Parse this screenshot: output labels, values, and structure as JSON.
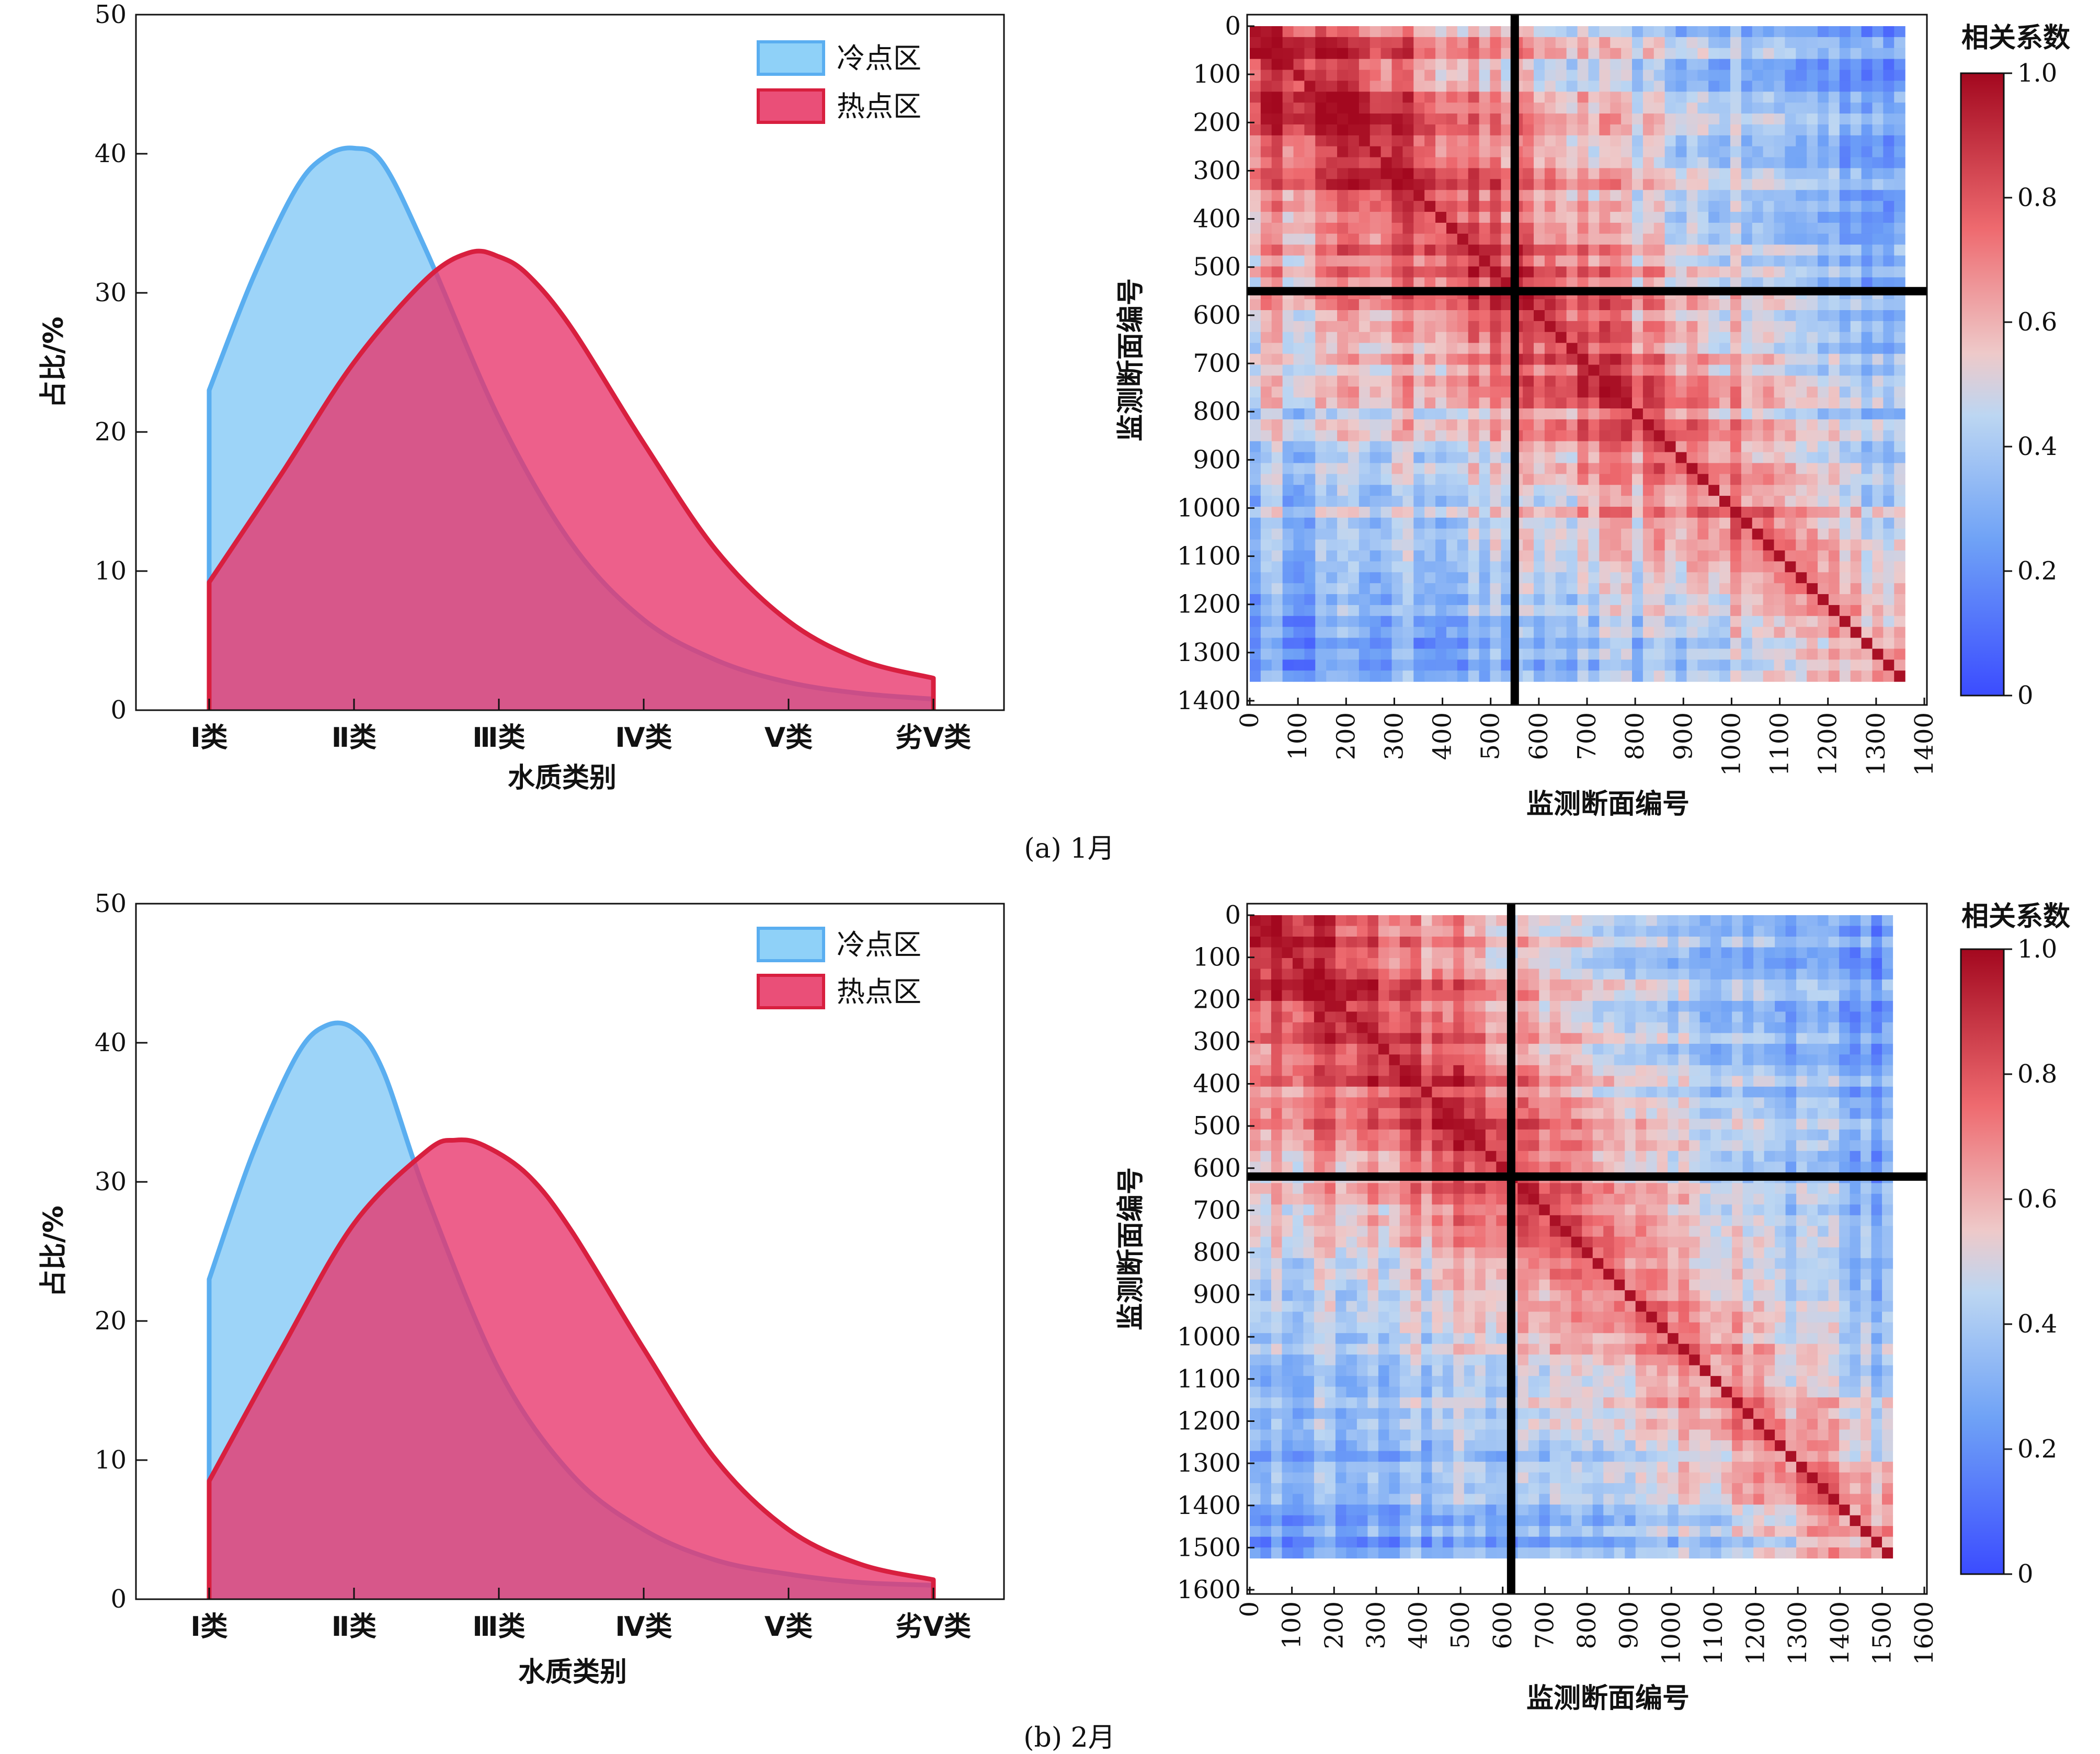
{
  "panels": [
    {
      "caption": "(a)  1月",
      "dist": {
        "type": "area",
        "ylabel": "占比/%",
        "xlabel": "水质类别",
        "ylim": [
          0,
          50
        ],
        "yticks": [
          "0",
          "10",
          "20",
          "30",
          "40",
          "50"
        ],
        "categories": [
          "Ⅰ类",
          "Ⅱ类",
          "Ⅲ类",
          "Ⅳ类",
          "Ⅴ类",
          "劣Ⅴ类"
        ],
        "legend_position": "top-right",
        "series": [
          {
            "name": "冷点区",
            "color": "#7cc6f5",
            "edge": "#5aaef0",
            "x": [
              0,
              0.3,
              0.6,
              0.8,
              1.0,
              1.2,
              1.5,
              2.0,
              2.5,
              3.0,
              3.5,
              4.0,
              4.5,
              5.0
            ],
            "y": [
              23.0,
              31.0,
              37.5,
              39.8,
              40.4,
              39.3,
              33.0,
              21.0,
              12.0,
              6.5,
              3.6,
              2.0,
              1.2,
              0.8
            ]
          },
          {
            "name": "热点区",
            "color": "#e8336a",
            "edge": "#d81f3f",
            "x": [
              0,
              0.5,
              1.0,
              1.5,
              1.8,
              2.0,
              2.2,
              2.5,
              3.0,
              3.5,
              4.0,
              4.5,
              5.0
            ],
            "y": [
              9.2,
              17.0,
              25.0,
              31.0,
              32.9,
              32.6,
              31.3,
              27.5,
              19.2,
              11.5,
              6.4,
              3.6,
              2.3
            ]
          }
        ]
      },
      "heatmap": {
        "type": "heatmap",
        "xlabel": "监测断面编号",
        "ylabel": "监测断面编号",
        "colorbar_title": "相关系数",
        "n_sections": 1360,
        "axis_max": 1400,
        "ticks": [
          "0",
          "100",
          "200",
          "300",
          "400",
          "500",
          "600",
          "700",
          "800",
          "900",
          "1000",
          "1100",
          "1200",
          "1300",
          "1400"
        ],
        "colorbar_ticks": [
          "0",
          "0.2",
          "0.4",
          "0.6",
          "0.8",
          "1.0"
        ],
        "divider": 550
      }
    },
    {
      "caption": "(b)  2月",
      "dist": {
        "type": "area",
        "ylabel": "占比/%",
        "xlabel": "水质类别",
        "ylim": [
          0,
          50
        ],
        "yticks": [
          "0",
          "10",
          "20",
          "30",
          "40",
          "50"
        ],
        "categories": [
          "Ⅰ类",
          "Ⅱ类",
          "Ⅲ类",
          "Ⅳ类",
          "Ⅴ类",
          "劣Ⅴ类"
        ],
        "legend_position": "top-right",
        "series": [
          {
            "name": "冷点区",
            "color": "#7cc6f5",
            "edge": "#5aaef0",
            "x": [
              0,
              0.3,
              0.6,
              0.8,
              1.0,
              1.2,
              1.5,
              2.0,
              2.5,
              3.0,
              3.5,
              4.0,
              4.5,
              5.0
            ],
            "y": [
              23.0,
              32.0,
              39.0,
              41.2,
              41.0,
              38.0,
              29.0,
              16.5,
              9.0,
              5.0,
              2.8,
              1.8,
              1.2,
              1.0
            ]
          },
          {
            "name": "热点区",
            "color": "#e8336a",
            "edge": "#d81f3f",
            "x": [
              0,
              0.5,
              1.0,
              1.5,
              1.7,
              1.9,
              2.2,
              2.5,
              3.0,
              3.5,
              4.0,
              4.5,
              5.0
            ],
            "y": [
              8.5,
              18.0,
              27.0,
              32.2,
              33.0,
              32.6,
              30.5,
              26.5,
              18.0,
              10.0,
              5.0,
              2.5,
              1.4
            ]
          }
        ]
      },
      "heatmap": {
        "type": "heatmap",
        "xlabel": "监测断面编号",
        "ylabel": "监测断面编号",
        "colorbar_title": "相关系数",
        "n_sections": 1525,
        "axis_max": 1600,
        "ticks": [
          "0",
          "100",
          "200",
          "300",
          "400",
          "500",
          "600",
          "700",
          "800",
          "900",
          "1000",
          "1100",
          "1200",
          "1300",
          "1400",
          "1500",
          "1600"
        ],
        "colorbar_ticks": [
          "0",
          "0.2",
          "0.4",
          "0.6",
          "0.8",
          "1.0"
        ],
        "divider": 620
      }
    }
  ]
}
